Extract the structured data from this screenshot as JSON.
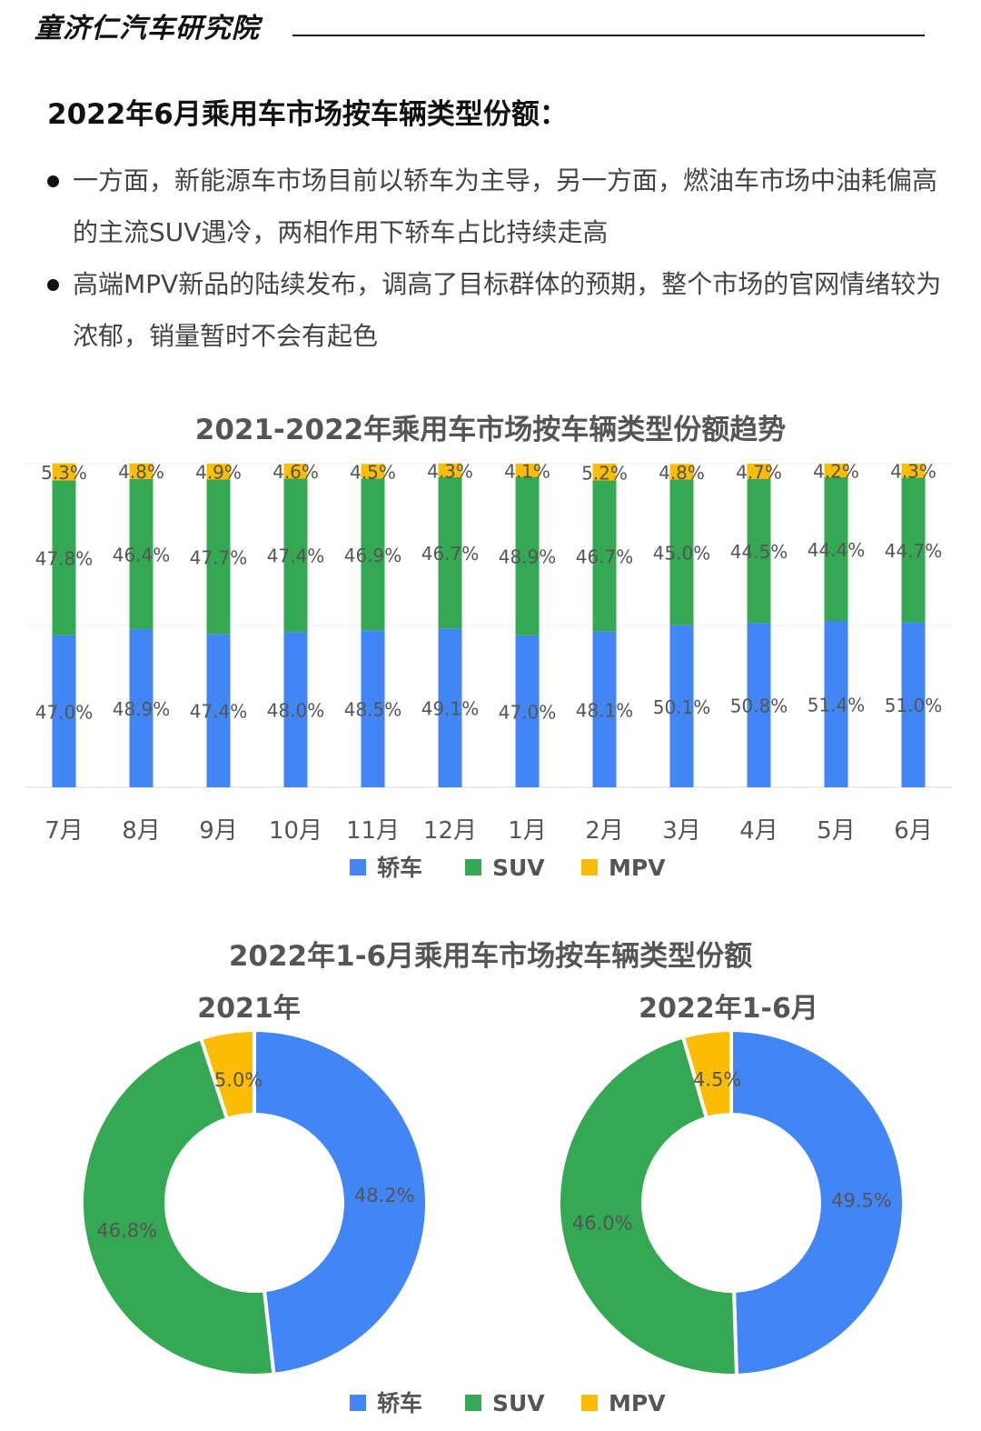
{
  "header": {
    "brand": "童济仁汽车研究院"
  },
  "section": {
    "title": "2022年6月乘用车市场按车辆类型份额：",
    "bullets": [
      "一方面，新能源车市场目前以轿车为主导，另一方面，燃油车市场中油耗偏高的主流SUV遇冷，两相作用下轿车占比持续走高",
      "高端MPV新品的陆续发布，调高了目标群体的预期，整个市场的官网情绪较为浓郁，销量暂时不会有起色"
    ]
  },
  "colors": {
    "sedan": "#4285F4",
    "suv": "#34A853",
    "mpv": "#FBBC04"
  },
  "chart_data": [
    {
      "type": "bar",
      "stacked": true,
      "title": "2021-2022年乘用车市场按车辆类型份额趋势",
      "categories": [
        "7月",
        "8月",
        "9月",
        "10月",
        "11月",
        "12月",
        "1月",
        "2月",
        "3月",
        "4月",
        "5月",
        "6月"
      ],
      "series": [
        {
          "name": "轿车",
          "values": [
            47.0,
            48.9,
            47.4,
            48.0,
            48.5,
            49.1,
            47.0,
            48.1,
            50.1,
            50.8,
            51.4,
            51.0
          ]
        },
        {
          "name": "SUV",
          "values": [
            47.8,
            46.4,
            47.7,
            47.4,
            46.9,
            46.7,
            48.9,
            46.7,
            45.0,
            44.5,
            44.4,
            44.7
          ]
        },
        {
          "name": "MPV",
          "values": [
            5.3,
            4.8,
            4.9,
            4.6,
            4.5,
            4.3,
            4.1,
            5.2,
            4.8,
            4.7,
            4.2,
            4.3
          ]
        }
      ],
      "ylim": [
        0,
        100
      ],
      "grid": true,
      "legend": "bottom"
    },
    {
      "type": "pie",
      "title": "2022年1-6月乘用车市场按车辆类型份额",
      "subtitle": "2021年",
      "donut": true,
      "labels": [
        "轿车",
        "SUV",
        "MPV"
      ],
      "values": [
        48.2,
        46.8,
        5.0
      ]
    },
    {
      "type": "pie",
      "subtitle": "2022年1-6月",
      "donut": true,
      "labels": [
        "轿车",
        "SUV",
        "MPV"
      ],
      "values": [
        49.5,
        46.0,
        4.5
      ],
      "legend": "bottom"
    }
  ]
}
